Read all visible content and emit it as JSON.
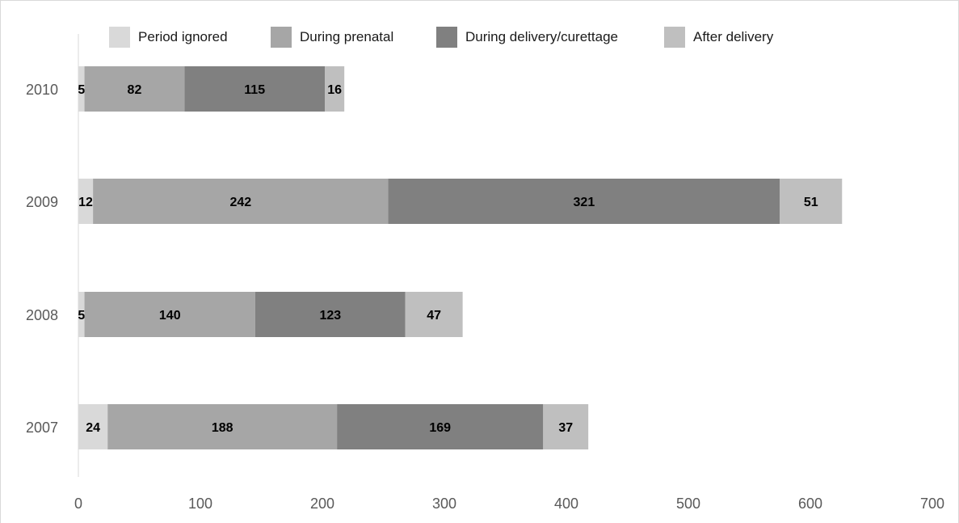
{
  "chart_data": {
    "type": "bar",
    "orientation": "horizontal",
    "stacked": true,
    "categories": [
      "2010",
      "2009",
      "2008",
      "2007"
    ],
    "series": [
      {
        "name": "Period ignored",
        "color": "#d9d9d9",
        "values": [
          5,
          12,
          5,
          24
        ]
      },
      {
        "name": "During prenatal",
        "color": "#a6a6a6",
        "values": [
          82,
          242,
          140,
          188
        ]
      },
      {
        "name": "During delivery/curettage",
        "color": "#808080",
        "values": [
          115,
          321,
          123,
          169
        ]
      },
      {
        "name": "After delivery",
        "color": "#bfbfbf",
        "values": [
          16,
          51,
          47,
          37
        ]
      }
    ],
    "xlim": [
      0,
      700
    ],
    "x_ticks": [
      "0",
      "100",
      "200",
      "300",
      "400",
      "500",
      "600",
      "700"
    ],
    "grid": false,
    "data_labels": true,
    "legend_position": "top"
  }
}
